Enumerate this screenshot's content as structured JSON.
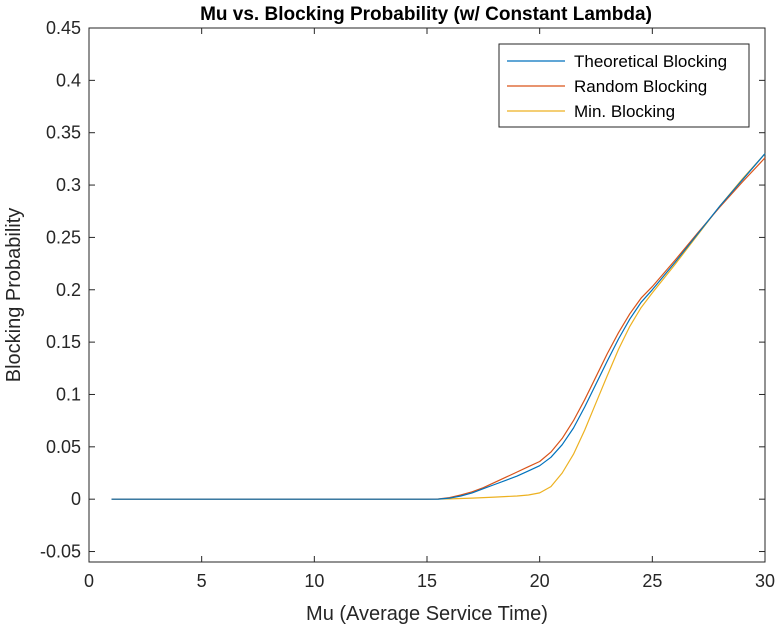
{
  "chart_data": {
    "type": "line",
    "title": "Mu vs. Blocking Probability (w/ Constant Lambda)",
    "xlabel": "Mu (Average Service Time)",
    "ylabel": "Blocking Probability",
    "xlim": [
      0,
      30
    ],
    "ylim": [
      -0.06,
      0.45
    ],
    "xticks": [
      0,
      5,
      10,
      15,
      20,
      25,
      30
    ],
    "xtick_labels": [
      "0",
      "5",
      "10",
      "15",
      "20",
      "25",
      "30"
    ],
    "yticks": [
      -0.05,
      0,
      0.05,
      0.1,
      0.15,
      0.2,
      0.25,
      0.3,
      0.35,
      0.4,
      0.45
    ],
    "ytick_labels": [
      "-0.05",
      "0",
      "0.05",
      "0.1",
      "0.15",
      "0.2",
      "0.25",
      "0.3",
      "0.35",
      "0.4",
      "0.45"
    ],
    "grid": false,
    "legend_position": "top-right",
    "series": [
      {
        "name": "Theoretical Blocking",
        "color": "#0072BD",
        "x": [
          1,
          5,
          10,
          15,
          15.5,
          16,
          16.5,
          17,
          17.5,
          18,
          18.5,
          19,
          19.5,
          20,
          20.5,
          21,
          21.5,
          22,
          22.5,
          23,
          23.5,
          24,
          24.5,
          25,
          26,
          27,
          28,
          29,
          30
        ],
        "y": [
          0,
          0,
          0,
          0,
          0.0001,
          0.001,
          0.003,
          0.006,
          0.01,
          0.014,
          0.018,
          0.022,
          0.027,
          0.032,
          0.04,
          0.052,
          0.068,
          0.088,
          0.11,
          0.132,
          0.153,
          0.172,
          0.188,
          0.2,
          0.226,
          0.253,
          0.28,
          0.305,
          0.33
        ]
      },
      {
        "name": "Random Blocking",
        "color": "#D95319",
        "x": [
          1,
          5,
          10,
          15,
          15.5,
          16,
          16.5,
          17,
          17.5,
          18,
          18.5,
          19,
          19.5,
          20,
          20.5,
          21,
          21.5,
          22,
          22.5,
          23,
          23.5,
          24,
          24.5,
          25,
          26,
          27,
          28,
          29,
          30
        ],
        "y": [
          0,
          0,
          0,
          0,
          0.0002,
          0.0015,
          0.004,
          0.007,
          0.011,
          0.016,
          0.021,
          0.026,
          0.031,
          0.036,
          0.045,
          0.058,
          0.075,
          0.095,
          0.117,
          0.139,
          0.159,
          0.177,
          0.192,
          0.203,
          0.228,
          0.254,
          0.279,
          0.303,
          0.326
        ]
      },
      {
        "name": "Min. Blocking",
        "color": "#EDB120",
        "x": [
          1,
          5,
          10,
          15,
          16,
          17,
          18,
          19,
          19.5,
          20,
          20.5,
          21,
          21.5,
          22,
          22.5,
          23,
          23.5,
          24,
          24.5,
          25,
          26,
          27,
          28,
          29,
          30
        ],
        "y": [
          0,
          0,
          0,
          0,
          0.0003,
          0.001,
          0.002,
          0.003,
          0.004,
          0.006,
          0.012,
          0.025,
          0.043,
          0.066,
          0.092,
          0.118,
          0.143,
          0.165,
          0.183,
          0.197,
          0.224,
          0.252,
          0.28,
          0.306,
          0.33
        ]
      }
    ]
  }
}
